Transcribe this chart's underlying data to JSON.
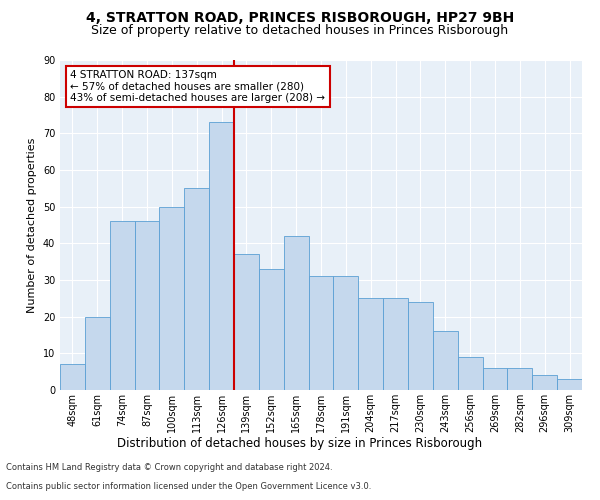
{
  "title1": "4, STRATTON ROAD, PRINCES RISBOROUGH, HP27 9BH",
  "title2": "Size of property relative to detached houses in Princes Risborough",
  "xlabel": "Distribution of detached houses by size in Princes Risborough",
  "ylabel": "Number of detached properties",
  "footnote1": "Contains HM Land Registry data © Crown copyright and database right 2024.",
  "footnote2": "Contains public sector information licensed under the Open Government Licence v3.0.",
  "categories": [
    "48sqm",
    "61sqm",
    "74sqm",
    "87sqm",
    "100sqm",
    "113sqm",
    "126sqm",
    "139sqm",
    "152sqm",
    "165sqm",
    "178sqm",
    "191sqm",
    "204sqm",
    "217sqm",
    "230sqm",
    "243sqm",
    "256sqm",
    "269sqm",
    "282sqm",
    "296sqm",
    "309sqm"
  ],
  "values": [
    7,
    20,
    46,
    46,
    50,
    55,
    73,
    37,
    33,
    42,
    31,
    31,
    25,
    25,
    24,
    16,
    9,
    6,
    6,
    4,
    3
  ],
  "bar_color": "#c5d8ed",
  "bar_edge_color": "#5a9fd4",
  "vline_x": 6.5,
  "vline_color": "#cc0000",
  "annotation_text": "4 STRATTON ROAD: 137sqm\n← 57% of detached houses are smaller (280)\n43% of semi-detached houses are larger (208) →",
  "annotation_box_color": "#ffffff",
  "annotation_box_edge": "#cc0000",
  "ylim": [
    0,
    90
  ],
  "yticks": [
    0,
    10,
    20,
    30,
    40,
    50,
    60,
    70,
    80,
    90
  ],
  "background_color": "#e8f0f8",
  "grid_color": "#ffffff",
  "title1_fontsize": 10,
  "title2_fontsize": 9,
  "xlabel_fontsize": 8.5,
  "ylabel_fontsize": 8,
  "tick_fontsize": 7,
  "annotation_fontsize": 7.5,
  "footnote_fontsize": 6
}
